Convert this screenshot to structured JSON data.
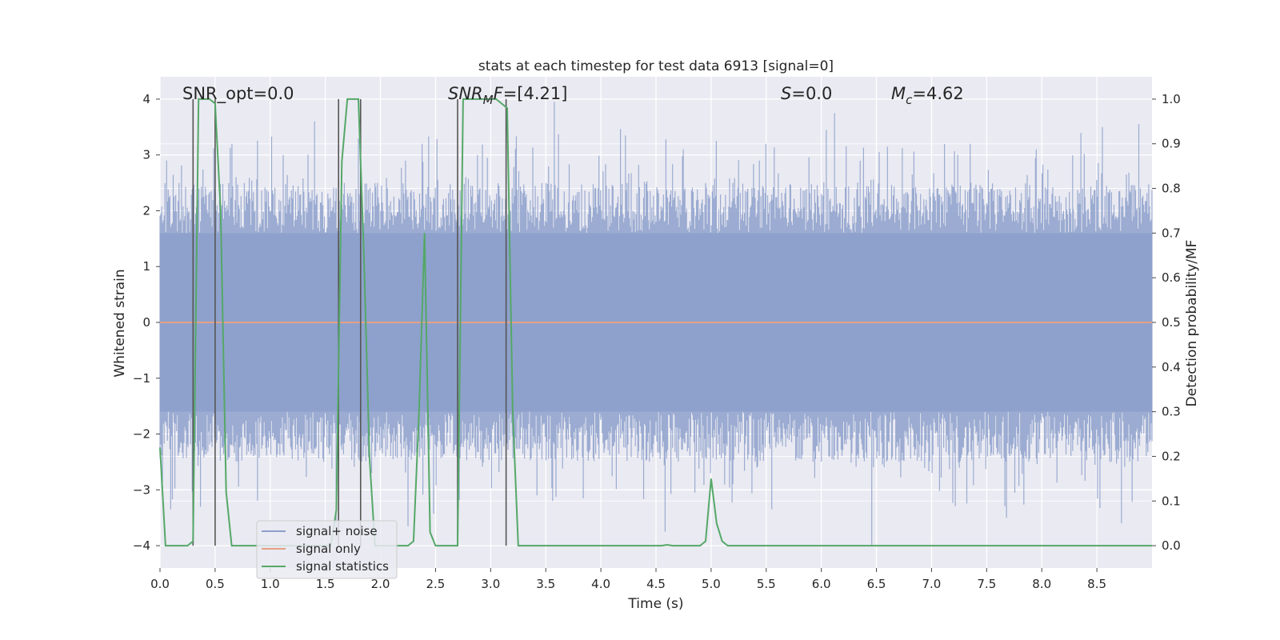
{
  "chart_data": {
    "type": "line",
    "title": "stats at each timestep for test data 6913 [signal=0]",
    "xlabel": "Time (s)",
    "ylabel": "Whitened strain",
    "y2label": "Detection probability/MF",
    "xlim": [
      0.0,
      9.0
    ],
    "ylim": [
      -4.4,
      4.4
    ],
    "y2lim": [
      -0.05,
      1.05
    ],
    "xticks": [
      0.0,
      0.5,
      1.0,
      1.5,
      2.0,
      2.5,
      3.0,
      3.5,
      4.0,
      4.5,
      5.0,
      5.5,
      6.0,
      6.5,
      7.0,
      7.5,
      8.0,
      8.5
    ],
    "xtick_labels": [
      "0.0",
      "0.5",
      "1.0",
      "1.5",
      "2.0",
      "2.5",
      "3.0",
      "3.5",
      "4.0",
      "4.5",
      "5.0",
      "5.5",
      "6.0",
      "6.5",
      "7.0",
      "7.5",
      "8.0",
      "8.5"
    ],
    "yticks": [
      4,
      3,
      2,
      1,
      0,
      -1,
      -2,
      -3,
      -4
    ],
    "ytick_labels": [
      "4",
      "3",
      "2",
      "1",
      "0",
      "−1",
      "−2",
      "−3",
      "−4"
    ],
    "y2ticks": [
      1.0,
      0.9,
      0.8,
      0.7,
      0.6,
      0.5,
      0.4,
      0.3,
      0.2,
      0.1,
      0.0
    ],
    "y2tick_labels": [
      "1.0",
      "0.9",
      "0.8",
      "0.7",
      "0.6",
      "0.5",
      "0.4",
      "0.3",
      "0.2",
      "0.1",
      "0.0"
    ],
    "annotations": {
      "snr_opt": "SNR_opt=0.0",
      "snr_mf_name": "SNR",
      "snr_mf_sub": "M",
      "snr_mf_f": "F",
      "snr_mf_value": "=[4.21]",
      "s_name": "S",
      "s_value": "=0.0",
      "mc_name": "M",
      "mc_sub": "c",
      "mc_value": "=4.62"
    },
    "legend": {
      "position": "lower-left",
      "entries": [
        "signal+ noise",
        "signal only",
        "signal statistics"
      ]
    },
    "series": [
      {
        "name": "signal+ noise",
        "color": "#8da0cb",
        "description": "dense whitened strain noise, roughly ±1.6 core with spikes up to ±4",
        "core": 1.6,
        "peaks": [
          [
            0.06,
            2.9
          ],
          [
            0.3,
            3.4
          ],
          [
            0.65,
            3.2
          ],
          [
            1.12,
            3.0
          ],
          [
            1.4,
            3.6
          ],
          [
            2.38,
            3.2
          ],
          [
            2.88,
            3.0
          ],
          [
            3.58,
            3.95
          ],
          [
            4.22,
            3.35
          ],
          [
            4.75,
            3.1
          ],
          [
            5.05,
            3.25
          ],
          [
            5.5,
            3.2
          ],
          [
            6.12,
            3.75
          ],
          [
            6.6,
            3.15
          ],
          [
            7.35,
            3.2
          ],
          [
            7.95,
            3.1
          ],
          [
            8.55,
            3.5
          ],
          [
            8.88,
            3.55
          ]
        ],
        "troughs": [
          [
            0.1,
            -3.35
          ],
          [
            1.6,
            -3.9
          ],
          [
            2.25,
            -3.65
          ],
          [
            3.42,
            -3.1
          ],
          [
            4.58,
            -3.75
          ],
          [
            5.55,
            -3.35
          ],
          [
            6.46,
            -4.0
          ],
          [
            7.68,
            -3.5
          ],
          [
            8.72,
            -3.6
          ]
        ]
      },
      {
        "name": "signal only",
        "color": "#e5a084",
        "x": [
          0.0,
          9.0
        ],
        "y": [
          0.0,
          0.0
        ]
      },
      {
        "name": "signal statistics",
        "color": "#55a868",
        "axis": "right",
        "x": [
          0.0,
          0.05,
          0.25,
          0.3,
          0.35,
          0.45,
          0.5,
          0.55,
          0.6,
          0.65,
          0.75,
          1.55,
          1.6,
          1.65,
          1.7,
          1.8,
          1.85,
          1.9,
          1.95,
          2.0,
          2.25,
          2.3,
          2.35,
          2.4,
          2.45,
          2.5,
          2.65,
          2.7,
          2.75,
          3.05,
          3.1,
          3.15,
          3.2,
          3.25,
          3.6,
          4.55,
          4.6,
          4.65,
          4.9,
          4.95,
          5.0,
          5.05,
          5.1,
          5.15,
          9.0
        ],
        "y": [
          0.22,
          0.0,
          0.0,
          0.01,
          1.0,
          1.0,
          0.99,
          0.75,
          0.12,
          0.0,
          0.0,
          0.0,
          0.08,
          0.86,
          1.0,
          1.0,
          0.65,
          0.2,
          0.0,
          0.0,
          0.0,
          0.01,
          0.3,
          0.7,
          0.03,
          0.0,
          0.0,
          0.0,
          1.0,
          1.0,
          0.99,
          0.98,
          0.3,
          0.0,
          0.0,
          0.0,
          0.002,
          0.0,
          0.0,
          0.01,
          0.15,
          0.05,
          0.01,
          0.0,
          0.0
        ]
      }
    ],
    "vlines": [
      0.3,
      0.5,
      1.62,
      1.82,
      2.7,
      3.14
    ]
  }
}
